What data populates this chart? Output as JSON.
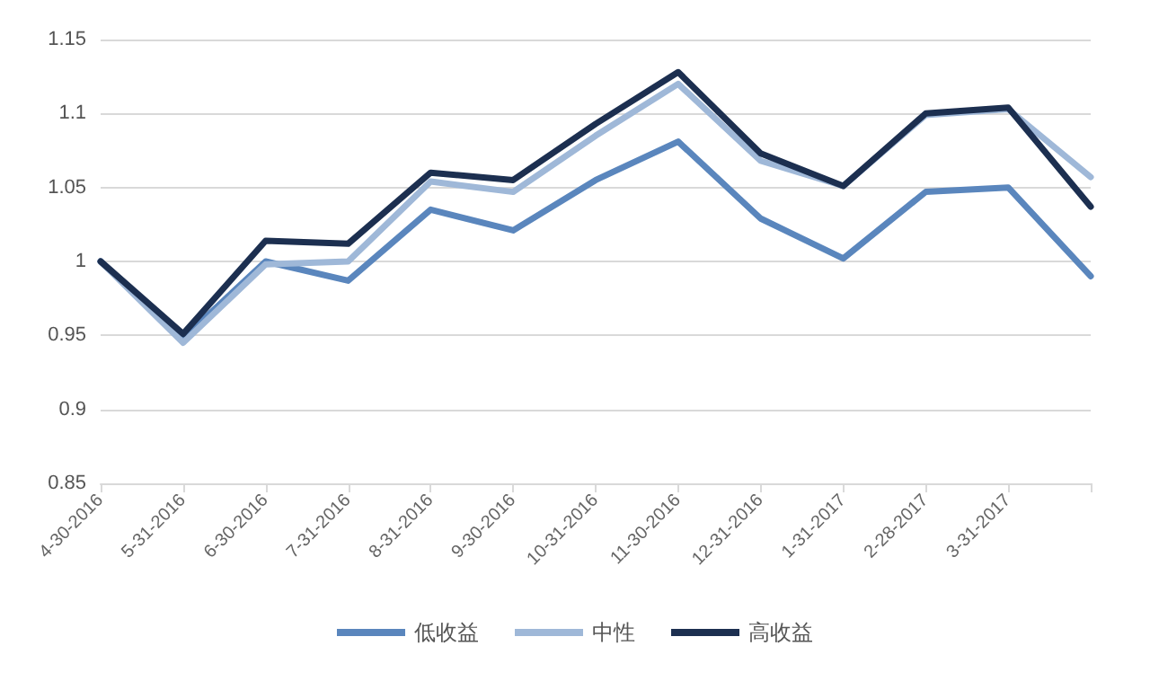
{
  "chart_data": {
    "type": "line",
    "categories": [
      "4-30-2016",
      "5-31-2016",
      "6-30-2016",
      "7-31-2016",
      "8-31-2016",
      "9-30-2016",
      "10-31-2016",
      "11-30-2016",
      "12-31-2016",
      "1-31-2017",
      "2-28-2017",
      "3-31-2017",
      null
    ],
    "series": [
      {
        "name": "低收益",
        "color": "#5a86bd",
        "values": [
          1.0,
          0.948,
          1.0,
          0.987,
          1.035,
          1.021,
          1.055,
          1.081,
          1.029,
          1.002,
          1.047,
          1.05,
          0.99
        ]
      },
      {
        "name": "中性",
        "color": "#9fb8d8",
        "values": [
          1.0,
          0.945,
          0.998,
          1.0,
          1.054,
          1.047,
          1.085,
          1.12,
          1.068,
          1.051,
          1.099,
          1.103,
          1.057
        ]
      },
      {
        "name": "高收益",
        "color": "#1c2f50",
        "values": [
          1.0,
          0.951,
          1.014,
          1.012,
          1.06,
          1.055,
          1.093,
          1.128,
          1.073,
          1.051,
          1.1,
          1.104,
          1.037
        ]
      }
    ],
    "ylim": [
      0.85,
      1.15
    ],
    "yticks": [
      0.85,
      0.9,
      0.95,
      1,
      1.05,
      1.1,
      1.15
    ],
    "grid": "y",
    "legend": "bottom",
    "marker": "none",
    "line_style": "solid"
  }
}
